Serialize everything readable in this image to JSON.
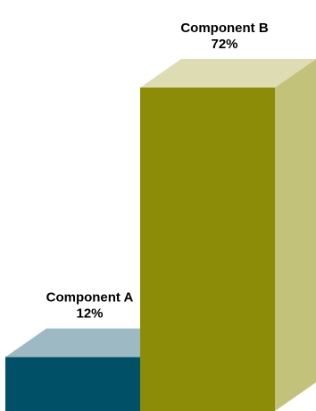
{
  "chart_data": {
    "type": "bar",
    "title": "",
    "xlabel": "",
    "ylabel": "",
    "ylim": [
      0,
      72
    ],
    "grid": false,
    "legend": "none",
    "style": "3d",
    "categories": [
      "Component A",
      "Component B"
    ],
    "values": [
      12,
      72
    ],
    "value_labels": [
      "12%",
      "72%"
    ],
    "colors": [
      {
        "front": "#005068",
        "top": "#9cb9c4",
        "side": "#7aa0b0"
      },
      {
        "front": "#8c8c08",
        "top": "#dedcb2",
        "side": "#c3c27a"
      }
    ]
  }
}
